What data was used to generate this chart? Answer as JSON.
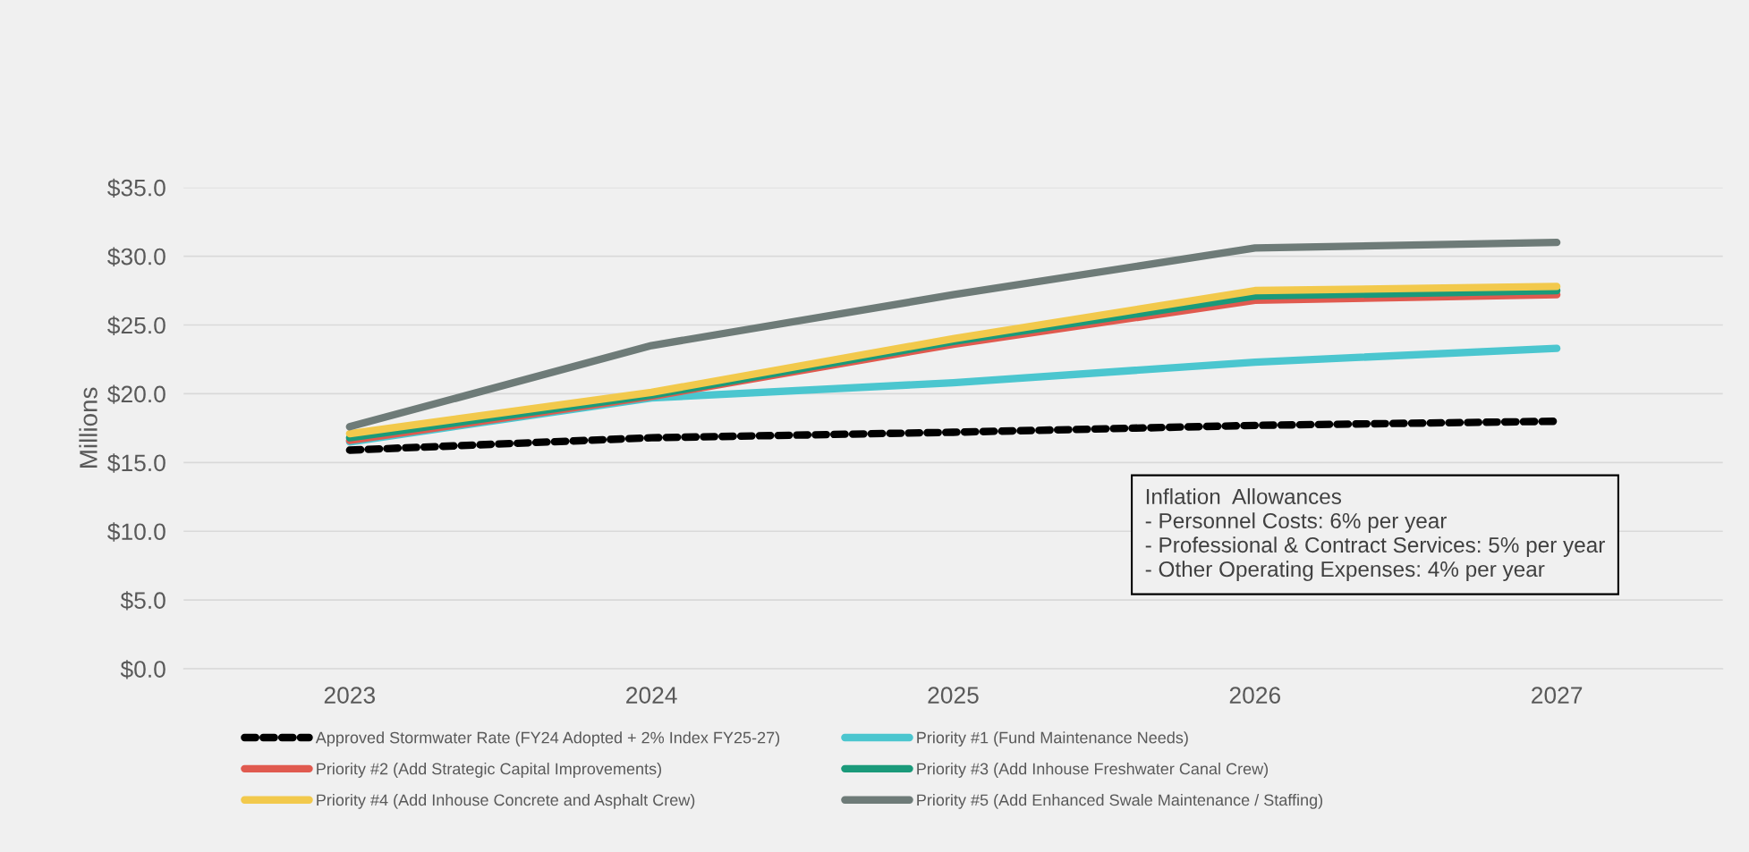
{
  "chart_data": {
    "type": "line",
    "categories": [
      "2023",
      "2024",
      "2025",
      "2026",
      "2027"
    ],
    "ylabel": "Millions",
    "ylim": [
      0,
      35
    ],
    "yticks": [
      {
        "value": 0,
        "label": "$0.0"
      },
      {
        "value": 5,
        "label": "$5.0"
      },
      {
        "value": 10,
        "label": "$10.0"
      },
      {
        "value": 15,
        "label": "$15.0"
      },
      {
        "value": 20,
        "label": "$20.0"
      },
      {
        "value": 25,
        "label": "$25.0"
      },
      {
        "value": 30,
        "label": "$30.0"
      },
      {
        "value": 35,
        "label": "$35.0"
      }
    ],
    "grid": "y",
    "legend": "bottom",
    "marker": "none",
    "series": [
      {
        "name": "Approved Stormwater Rate (FY24 Adopted + 2% Index FY25-27)",
        "color": "#000000",
        "line_style": "dashed",
        "values": [
          15.9,
          16.8,
          17.2,
          17.7,
          18.0
        ]
      },
      {
        "name": "Priority #1 (Fund Maintenance Needs)",
        "color": "#4bc6cf",
        "values": [
          16.5,
          19.7,
          20.8,
          22.3,
          23.3
        ]
      },
      {
        "name": "Priority #2 (Add Strategic Capital Improvements)",
        "color": "#e05a4f",
        "values": [
          16.6,
          19.8,
          23.6,
          26.8,
          27.2
        ]
      },
      {
        "name": "Priority #3 (Add Inhouse Freshwater Canal Crew)",
        "color": "#1a9a7a",
        "values": [
          16.8,
          19.9,
          23.8,
          27.1,
          27.5
        ]
      },
      {
        "name": "Priority #4 (Add Inhouse Concrete and Asphalt Crew)",
        "color": "#f2c94c",
        "values": [
          17.1,
          20.1,
          24.0,
          27.5,
          27.8
        ]
      },
      {
        "name": "Priority #5 (Add Enhanced Swale Maintenance / Staffing)",
        "color": "#6e7b78",
        "values": [
          17.6,
          23.5,
          27.2,
          30.6,
          31.0
        ]
      }
    ],
    "annotations": [
      "Inflation  Allowances\n- Personnel Costs: 6% per year\n- Professional & Contract Services: 5% per year\n- Other Operating Expenses: 4% per year"
    ]
  }
}
